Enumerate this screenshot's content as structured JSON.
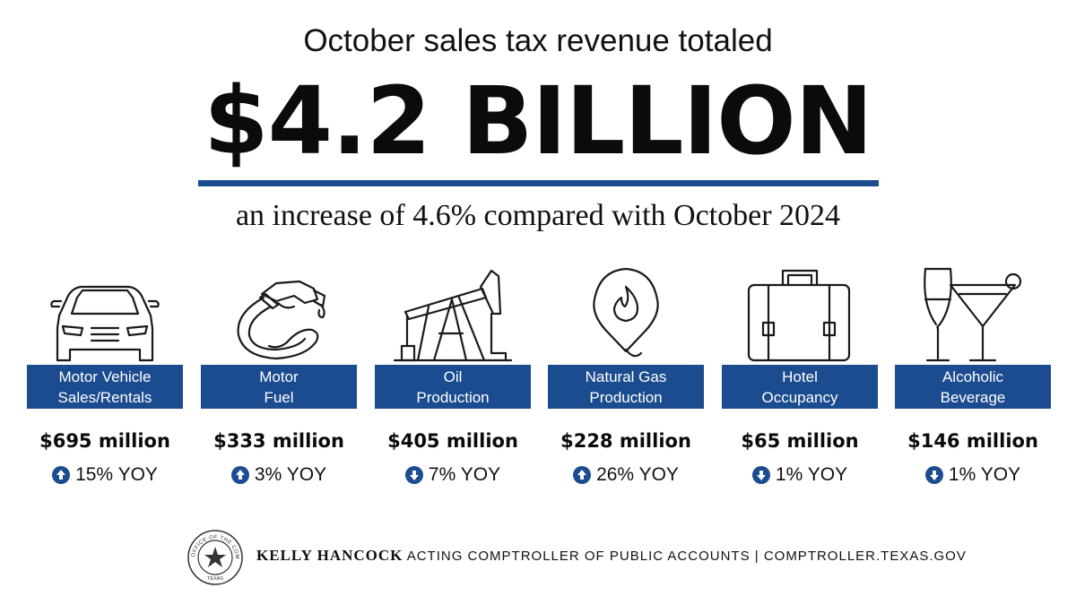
{
  "header": {
    "intro": "October sales tax revenue totaled",
    "headline": "$4.2 BILLION",
    "subline": "an increase of 4.6% compared with October 2024"
  },
  "categories": [
    {
      "label_line1": "Motor Vehicle",
      "label_line2": "Sales/Rentals",
      "amount": "$695 million",
      "change": "15% YOY",
      "direction": "up",
      "icon": "car-icon"
    },
    {
      "label_line1": "Motor",
      "label_line2": "Fuel",
      "amount": "$333 million",
      "change": "3% YOY",
      "direction": "up",
      "icon": "fuel-nozzle-icon"
    },
    {
      "label_line1": "Oil",
      "label_line2": "Production",
      "amount": "$405 million",
      "change": "7% YOY",
      "direction": "down",
      "icon": "oil-pumpjack-icon"
    },
    {
      "label_line1": "Natural Gas",
      "label_line2": "Production",
      "amount": "$228 million",
      "change": "26% YOY",
      "direction": "up",
      "icon": "gas-flame-pin-icon"
    },
    {
      "label_line1": "Hotel",
      "label_line2": "Occupancy",
      "amount": "$65 million",
      "change": "1% YOY",
      "direction": "down",
      "icon": "suitcase-icon"
    },
    {
      "label_line1": "Alcoholic",
      "label_line2": "Beverage",
      "amount": "$146 million",
      "change": "1% YOY",
      "direction": "down",
      "icon": "cocktail-glass-icon"
    }
  ],
  "footer": {
    "name": "KELLY HANCOCK",
    "title": "ACTING COMPTROLLER OF PUBLIC ACCOUNTS | COMPTROLLER.TEXAS.GOV",
    "seal_text": "OFFICE OF THE COMPTROLLER",
    "seal_state": "TEXAS"
  },
  "colors": {
    "accent": "#1b4c8f",
    "text": "#111111",
    "background": "#ffffff"
  }
}
